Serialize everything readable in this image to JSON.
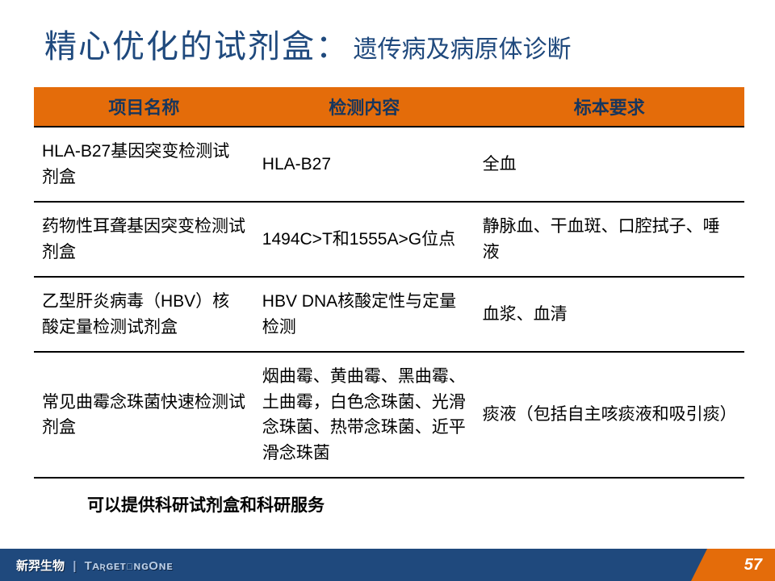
{
  "title": {
    "main": "精心优化的试剂盒：",
    "sub": "遗传病及病原体诊断"
  },
  "table": {
    "columns": [
      "项目名称",
      "检测内容",
      "标本要求"
    ],
    "rows": [
      [
        "HLA-B27基因突变检测试剂盒",
        "HLA-B27",
        "全血"
      ],
      [
        "药物性耳聋基因突变检测试剂盒",
        "1494C>T和1555A>G位点",
        "静脉血、干血斑、口腔拭子、唾液"
      ],
      [
        "乙型肝炎病毒（HBV）核酸定量检测试剂盒",
        "HBV DNA核酸定性与定量检测",
        "血浆、血清"
      ],
      [
        "常见曲霉念珠菌快速检测试剂盒",
        "烟曲霉、黄曲霉、黑曲霉、土曲霉，白色念珠菌、光滑念珠菌、热带念珠菌、近平滑念珠菌",
        "痰液（包括自主咳痰液和吸引痰）"
      ]
    ]
  },
  "note": "可以提供科研试剂盒和科研服务",
  "footer": {
    "cn": "新羿生物",
    "sep": "|",
    "en": "TᴀʀɢᴇᴛɪɴɢOɴᴇ",
    "page": "57"
  },
  "colors": {
    "accent": "#1f497d",
    "header_bg": "#e46c0a",
    "footer_bg": "#1f497d"
  }
}
